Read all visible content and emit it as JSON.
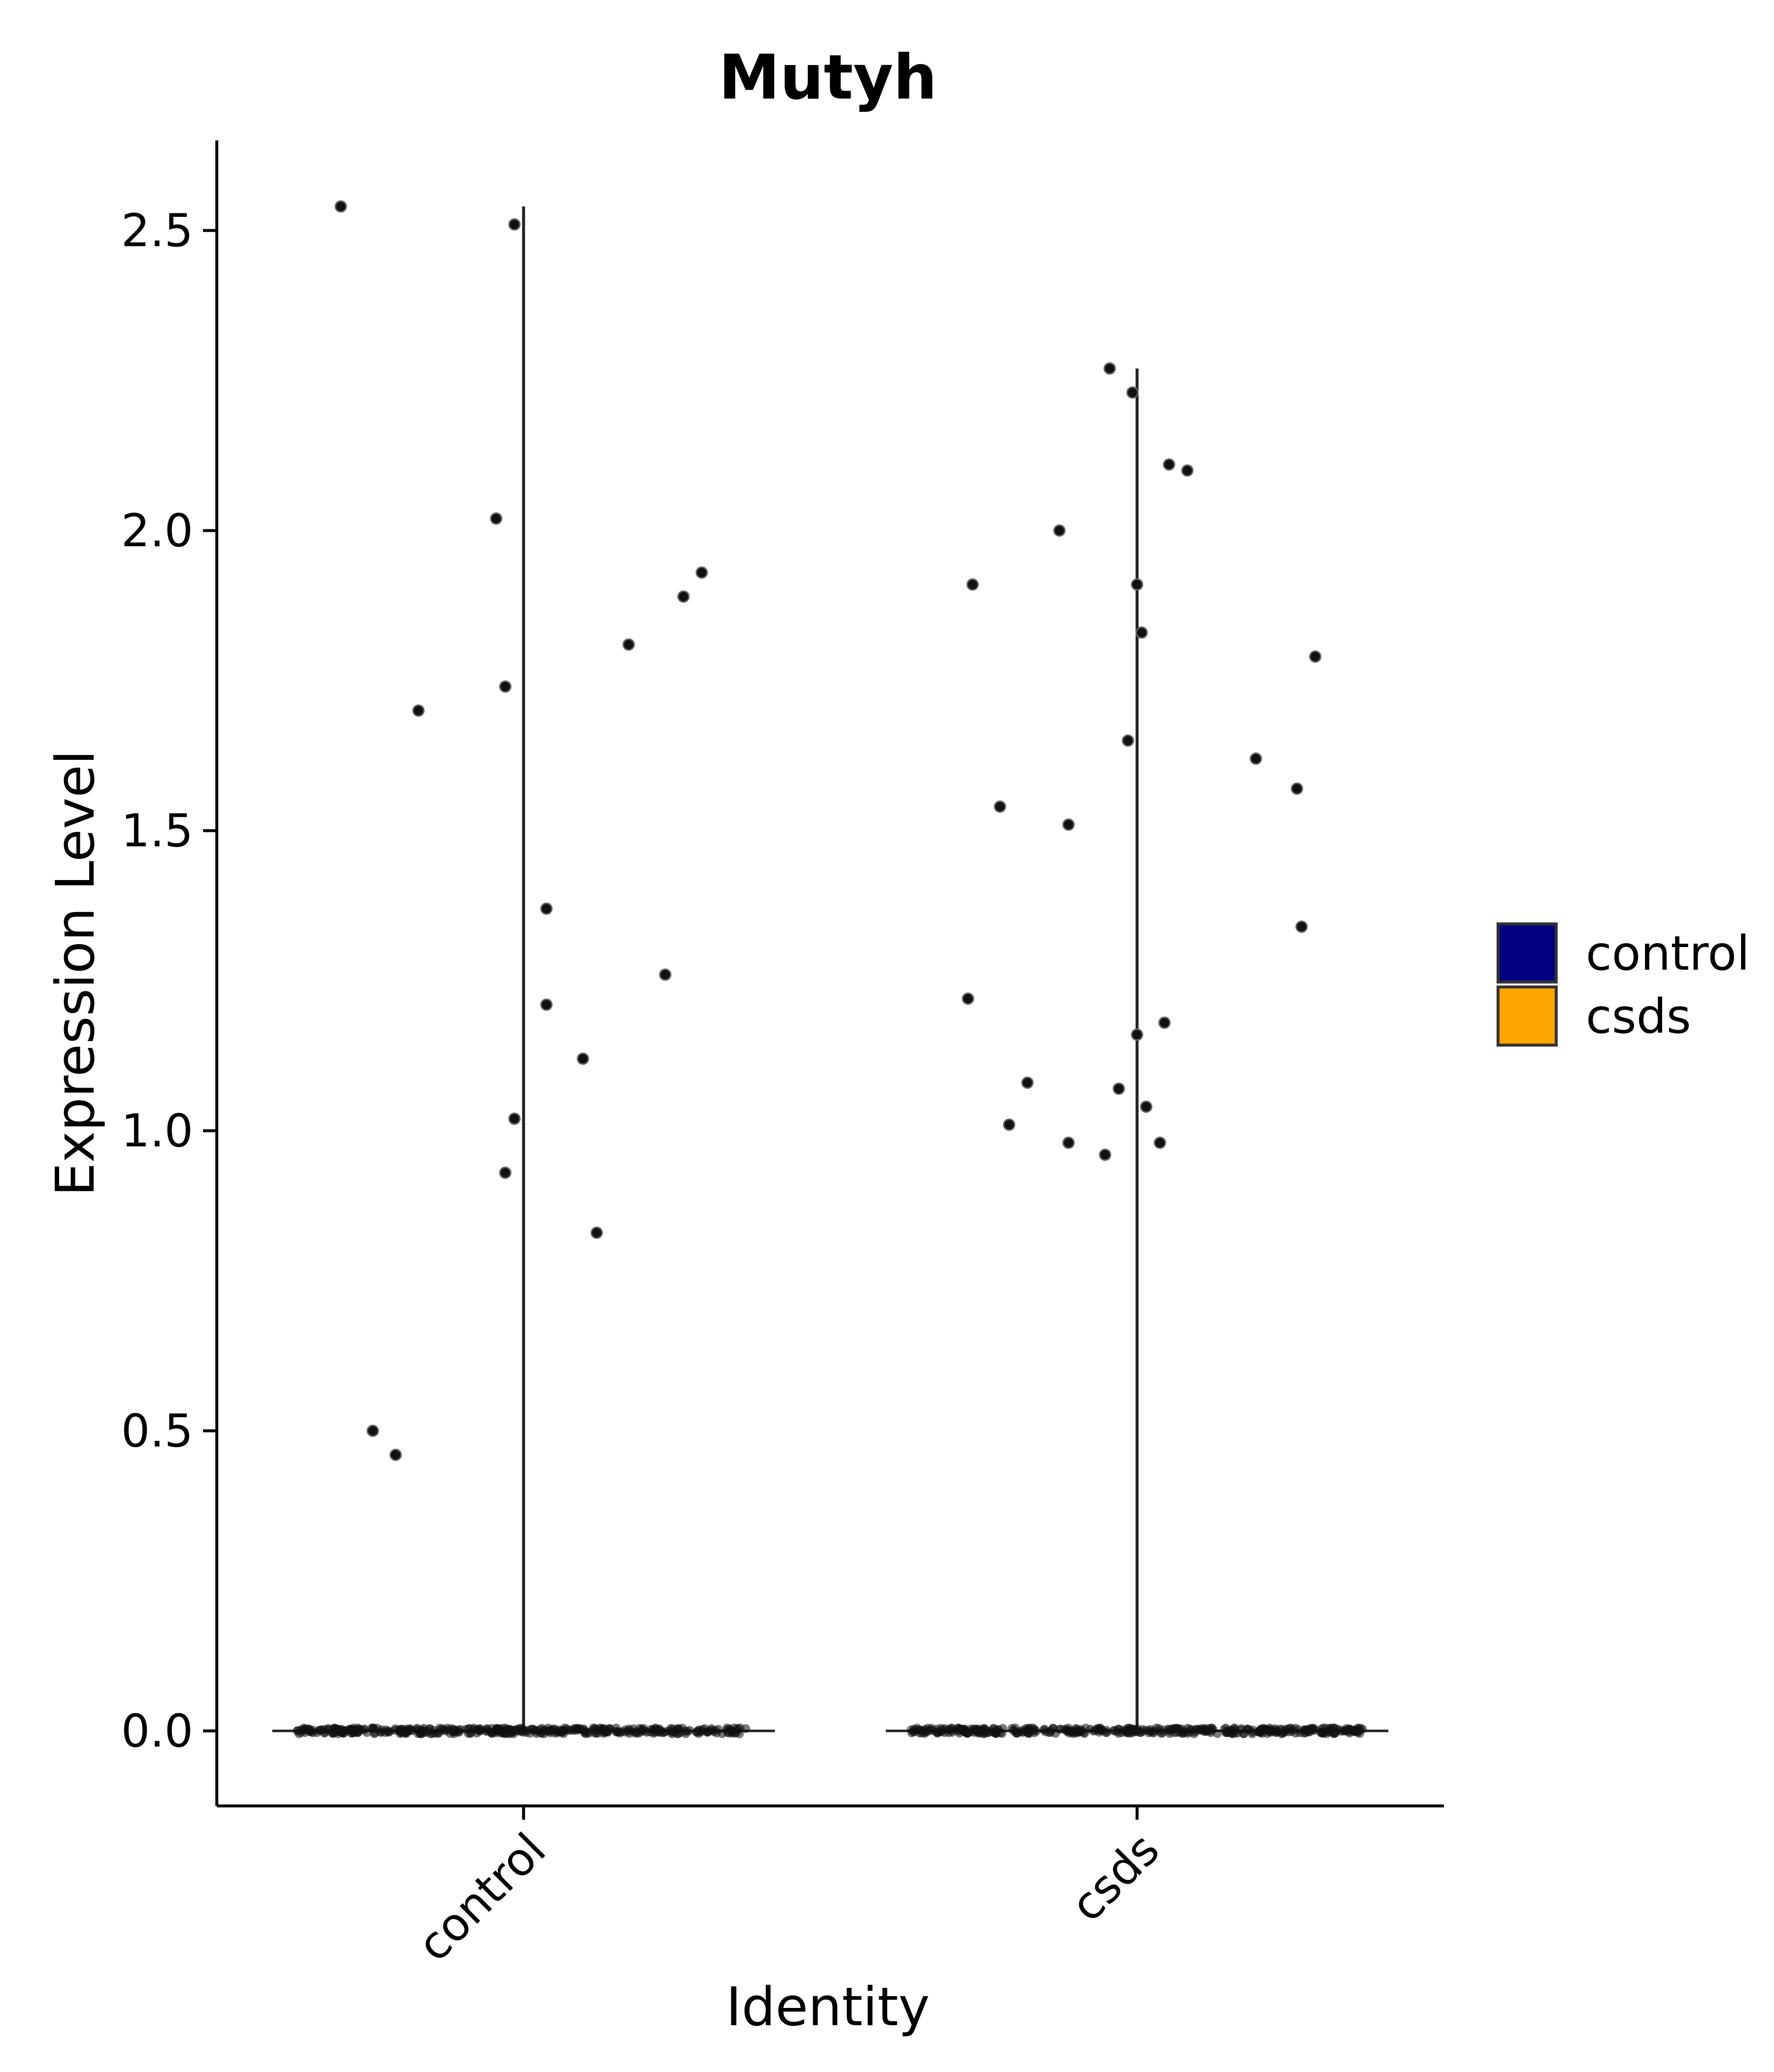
{
  "chart_data": {
    "type": "violin",
    "title": "Mutyh",
    "xlabel": "Identity",
    "ylabel": "Expression Level",
    "categories": [
      "control",
      "csds"
    ],
    "ylim": [
      -0.125,
      2.65
    ],
    "yticks": [
      0.0,
      0.5,
      1.0,
      1.5,
      2.0,
      2.5
    ],
    "ytick_labels": [
      "0.0",
      "0.5",
      "1.0",
      "1.5",
      "2.0",
      "2.5"
    ],
    "grid": false,
    "legend": {
      "placement": "right",
      "entries": [
        {
          "label": "control",
          "color": "#000080"
        },
        {
          "label": "csds",
          "color": "#FFA500"
        }
      ]
    },
    "series": [
      {
        "category": "control",
        "color": "#000080",
        "violin_min": 0.0,
        "violin_max": 2.54,
        "zero_count": 400,
        "points": [
          {
            "x_jitter": -0.4,
            "y": 2.54
          },
          {
            "x_jitter": -0.02,
            "y": 2.51
          },
          {
            "x_jitter": -0.06,
            "y": 2.02
          },
          {
            "x_jitter": 0.39,
            "y": 1.93
          },
          {
            "x_jitter": 0.35,
            "y": 1.89
          },
          {
            "x_jitter": 0.23,
            "y": 1.81
          },
          {
            "x_jitter": -0.04,
            "y": 1.74
          },
          {
            "x_jitter": -0.23,
            "y": 1.7
          },
          {
            "x_jitter": 0.05,
            "y": 1.37
          },
          {
            "x_jitter": 0.31,
            "y": 1.26
          },
          {
            "x_jitter": 0.05,
            "y": 1.21
          },
          {
            "x_jitter": 0.13,
            "y": 1.12
          },
          {
            "x_jitter": -0.02,
            "y": 1.02
          },
          {
            "x_jitter": -0.04,
            "y": 0.93
          },
          {
            "x_jitter": 0.16,
            "y": 0.83
          },
          {
            "x_jitter": -0.33,
            "y": 0.5
          },
          {
            "x_jitter": -0.28,
            "y": 0.46
          }
        ]
      },
      {
        "category": "csds",
        "color": "#FFA500",
        "violin_min": 0.0,
        "violin_max": 2.27,
        "zero_count": 400,
        "points": [
          {
            "x_jitter": -0.06,
            "y": 2.27
          },
          {
            "x_jitter": -0.01,
            "y": 2.23
          },
          {
            "x_jitter": 0.07,
            "y": 2.11
          },
          {
            "x_jitter": 0.11,
            "y": 2.1
          },
          {
            "x_jitter": -0.17,
            "y": 2.0
          },
          {
            "x_jitter": -0.36,
            "y": 1.91
          },
          {
            "x_jitter": 0.0,
            "y": 1.91
          },
          {
            "x_jitter": 0.01,
            "y": 1.83
          },
          {
            "x_jitter": 0.39,
            "y": 1.79
          },
          {
            "x_jitter": -0.02,
            "y": 1.65
          },
          {
            "x_jitter": 0.26,
            "y": 1.62
          },
          {
            "x_jitter": 0.35,
            "y": 1.57
          },
          {
            "x_jitter": -0.3,
            "y": 1.54
          },
          {
            "x_jitter": -0.15,
            "y": 1.51
          },
          {
            "x_jitter": 0.36,
            "y": 1.34
          },
          {
            "x_jitter": -0.37,
            "y": 1.22
          },
          {
            "x_jitter": 0.06,
            "y": 1.18
          },
          {
            "x_jitter": 0.0,
            "y": 1.16
          },
          {
            "x_jitter": -0.24,
            "y": 1.08
          },
          {
            "x_jitter": -0.04,
            "y": 1.07
          },
          {
            "x_jitter": 0.02,
            "y": 1.04
          },
          {
            "x_jitter": -0.28,
            "y": 1.01
          },
          {
            "x_jitter": 0.05,
            "y": 0.98
          },
          {
            "x_jitter": -0.15,
            "y": 0.98
          },
          {
            "x_jitter": -0.07,
            "y": 0.96
          }
        ]
      }
    ]
  }
}
